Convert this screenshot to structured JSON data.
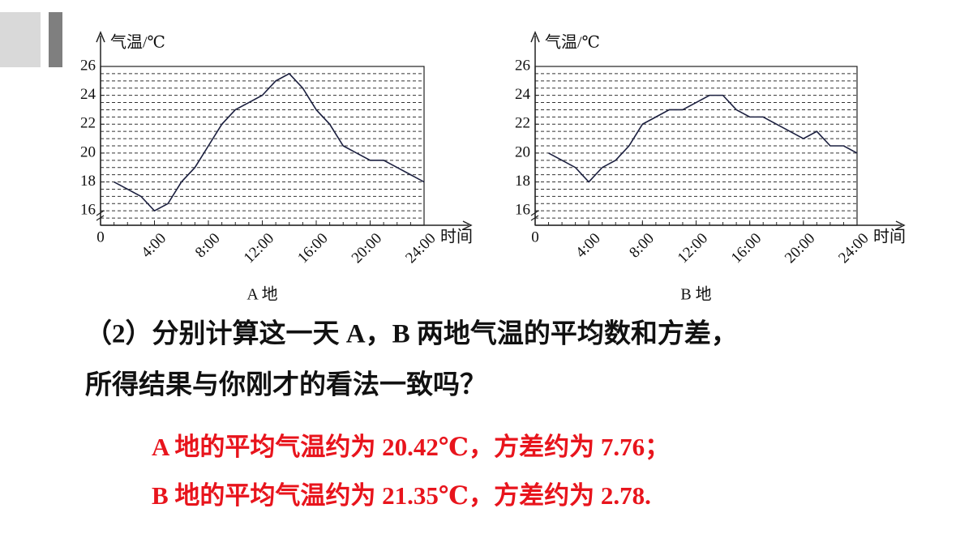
{
  "chart_data": [
    {
      "type": "line",
      "y_label": "气温/℃",
      "x_label": "时间",
      "caption": "A 地",
      "x": [
        1,
        2,
        3,
        4,
        5,
        6,
        7,
        8,
        9,
        10,
        11,
        12,
        13,
        14,
        15,
        16,
        17,
        18,
        19,
        20,
        21,
        22,
        23,
        24
      ],
      "values": [
        18,
        17.5,
        17,
        16,
        16.5,
        18,
        19,
        20.5,
        22,
        23,
        23.5,
        24,
        25,
        25.5,
        24.5,
        23,
        22,
        20.5,
        20,
        19.5,
        19.5,
        19,
        18.5,
        18
      ],
      "color": "#1c2040",
      "xlim": [
        0,
        24
      ],
      "xticks": [
        0,
        {
          "value": 4,
          "label": "4:00"
        },
        {
          "value": 8,
          "label": "8:00"
        },
        {
          "value": 12,
          "label": "12:00"
        },
        {
          "value": 16,
          "label": "16:00"
        },
        {
          "value": 20,
          "label": "20:00"
        },
        {
          "value": 24,
          "label": "24:00"
        }
      ],
      "ylim": [
        15,
        26
      ],
      "yticks": [
        16,
        18,
        20,
        22,
        24,
        26
      ],
      "minor_grid": 0.5
    },
    {
      "type": "line",
      "y_label": "气温/℃",
      "x_label": "时间",
      "caption": "B 地",
      "x": [
        1,
        2,
        3,
        4,
        5,
        6,
        7,
        8,
        9,
        10,
        11,
        12,
        13,
        14,
        15,
        16,
        17,
        18,
        19,
        20,
        21,
        22,
        23,
        24
      ],
      "values": [
        20,
        19.5,
        19,
        18,
        19,
        19.5,
        20.5,
        22,
        22.5,
        23,
        23,
        23.5,
        24,
        24,
        23,
        22.5,
        22.5,
        22,
        21.5,
        21,
        21.5,
        20.5,
        20.5,
        20
      ],
      "color": "#1c2040",
      "xlim": [
        0,
        24
      ],
      "xticks": [
        0,
        {
          "value": 4,
          "label": "4:00"
        },
        {
          "value": 8,
          "label": "8:00"
        },
        {
          "value": 12,
          "label": "12:00"
        },
        {
          "value": 16,
          "label": "16:00"
        },
        {
          "value": 20,
          "label": "20:00"
        },
        {
          "value": 24,
          "label": "24:00"
        }
      ],
      "ylim": [
        15,
        26
      ],
      "yticks": [
        16,
        18,
        20,
        22,
        24,
        26
      ],
      "minor_grid": 0.5
    }
  ],
  "slide": {
    "question": [
      "（2）分别计算这一天 A，B 两地气温的平均数和方差，",
      "所得结果与你刚才的看法一致吗？"
    ],
    "answers": [
      "A 地的平均气温约为 20.42℃，方差约为 7.76；",
      "B 地的平均气温约为 21.35℃，方差约为 2.78."
    ]
  }
}
